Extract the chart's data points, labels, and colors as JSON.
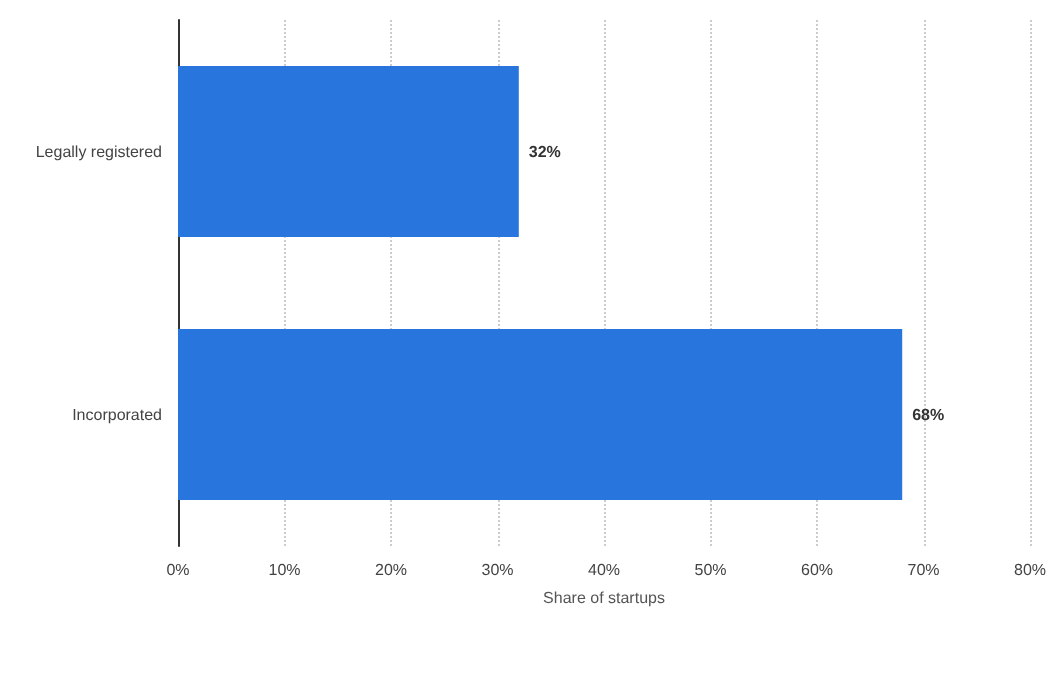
{
  "chart_data": {
    "type": "bar",
    "orientation": "horizontal",
    "categories": [
      "Legally registered",
      "Incorporated"
    ],
    "values": [
      32,
      68
    ],
    "color": "#2775dd",
    "xlabel": "Share of startups",
    "xlim": [
      0,
      80
    ],
    "xticks": [
      {
        "value": 0,
        "label": "0%"
      },
      {
        "value": 10,
        "label": "10%"
      },
      {
        "value": 20,
        "label": "20%"
      },
      {
        "value": 30,
        "label": "30%"
      },
      {
        "value": 40,
        "label": "40%"
      },
      {
        "value": 50,
        "label": "50%"
      },
      {
        "value": 60,
        "label": "60%"
      },
      {
        "value": 70,
        "label": "70%"
      },
      {
        "value": 80,
        "label": "80%"
      }
    ],
    "value_labels": [
      "32%",
      "68%"
    ],
    "grid": "x"
  }
}
